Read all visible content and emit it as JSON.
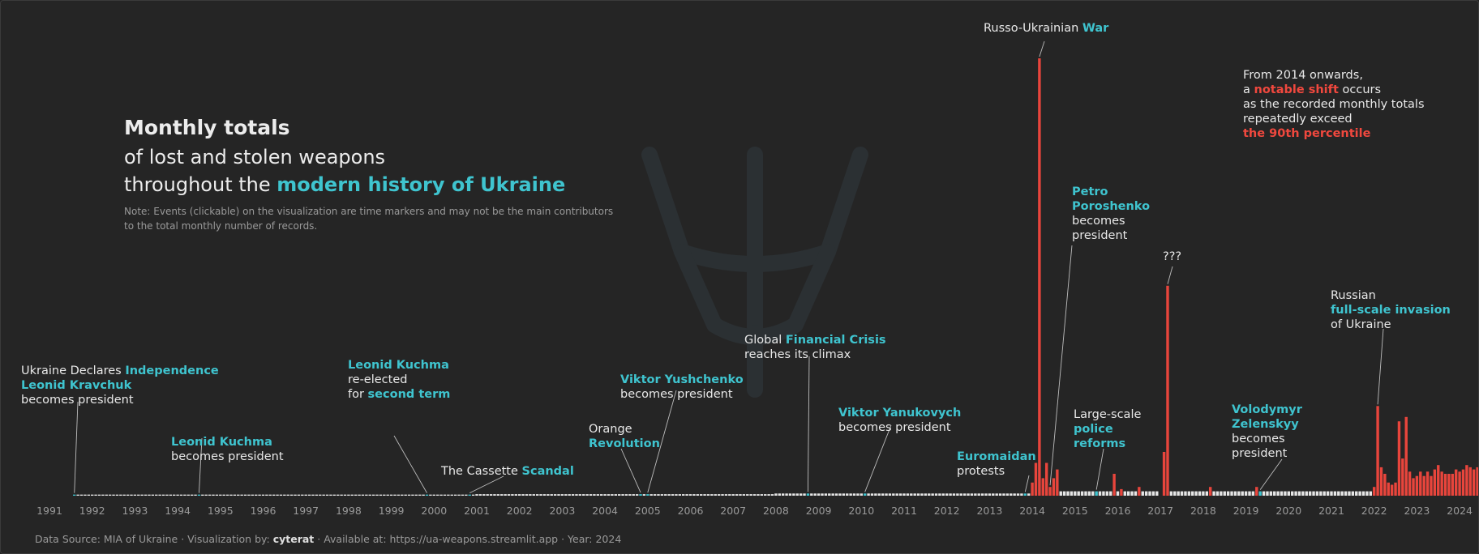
{
  "title": {
    "line1": "Monthly totals",
    "line2": "of lost and stolen weapons",
    "line3_prefix": "throughout the ",
    "line3_highlight": "modern history of Ukraine",
    "note": "Note: Events (clickable) on the visualization are time markers and may not be the main contributors to the total monthly number of records."
  },
  "footer": {
    "source": "Data Source: MIA of Ukraine · Visualization by: ",
    "author": "cyterat",
    "rest": " · Available at: https://ua-weapons.streamlit.app · Year: 2024"
  },
  "colors": {
    "background": "#252525",
    "normal_bar": "#e6e6e6",
    "high_bar": "#e8453c",
    "event_bar": "#3fc4cf",
    "accent": "#3fc4cf",
    "alert": "#f0483e"
  },
  "chart_data": {
    "type": "bar",
    "xlabel": "",
    "ylabel": "",
    "grid": false,
    "x_ticks": [
      "1991",
      "1992",
      "1993",
      "1994",
      "1995",
      "1996",
      "1997",
      "1998",
      "1999",
      "2000",
      "2001",
      "2002",
      "2003",
      "2004",
      "2005",
      "2006",
      "2007",
      "2008",
      "2009",
      "2010",
      "2011",
      "2012",
      "2013",
      "2014",
      "2015",
      "2016",
      "2017",
      "2018",
      "2019",
      "2020",
      "2021",
      "2022",
      "2023",
      "2024"
    ],
    "period": {
      "start": "1991-08",
      "end": "2024-06"
    },
    "threshold": "the 90th percentile",
    "highlighted_months": [
      {
        "month": "2014-01",
        "value": 6
      },
      {
        "month": "2014-02",
        "value": 15
      },
      {
        "month": "2014-03",
        "value": 200
      },
      {
        "month": "2014-04",
        "value": 8
      },
      {
        "month": "2014-05",
        "value": 15
      },
      {
        "month": "2014-06",
        "value": 4
      },
      {
        "month": "2014-07",
        "value": 8
      },
      {
        "month": "2014-08",
        "value": 12
      },
      {
        "month": "2015-12",
        "value": 10
      },
      {
        "month": "2016-02",
        "value": 3
      },
      {
        "month": "2016-07",
        "value": 4
      },
      {
        "month": "2017-02",
        "value": 20
      },
      {
        "month": "2017-03",
        "value": 96
      },
      {
        "month": "2018-03",
        "value": 4
      },
      {
        "month": "2019-04",
        "value": 4
      },
      {
        "month": "2022-01",
        "value": 4
      },
      {
        "month": "2022-02",
        "value": 41
      },
      {
        "month": "2022-03",
        "value": 13
      },
      {
        "month": "2022-04",
        "value": 10
      },
      {
        "month": "2022-05",
        "value": 6
      },
      {
        "month": "2022-06",
        "value": 5
      },
      {
        "month": "2022-07",
        "value": 6
      },
      {
        "month": "2022-08",
        "value": 34
      },
      {
        "month": "2022-09",
        "value": 17
      },
      {
        "month": "2022-10",
        "value": 36
      },
      {
        "month": "2022-11",
        "value": 11
      },
      {
        "month": "2022-12",
        "value": 8
      },
      {
        "month": "2023-01",
        "value": 9
      },
      {
        "month": "2023-02",
        "value": 11
      },
      {
        "month": "2023-03",
        "value": 9
      },
      {
        "month": "2023-04",
        "value": 11
      },
      {
        "month": "2023-05",
        "value": 9
      },
      {
        "month": "2023-06",
        "value": 12
      },
      {
        "month": "2023-07",
        "value": 14
      },
      {
        "month": "2023-08",
        "value": 11
      },
      {
        "month": "2023-09",
        "value": 10
      },
      {
        "month": "2023-10",
        "value": 10
      },
      {
        "month": "2023-11",
        "value": 10
      },
      {
        "month": "2023-12",
        "value": 12
      },
      {
        "month": "2024-01",
        "value": 11
      },
      {
        "month": "2024-02",
        "value": 12
      },
      {
        "month": "2024-03",
        "value": 14
      },
      {
        "month": "2024-04",
        "value": 13
      },
      {
        "month": "2024-05",
        "value": 12
      },
      {
        "month": "2024-06",
        "value": 13
      }
    ],
    "baseline": [
      {
        "from": "1991-08",
        "to": "2000-12",
        "value": 0.5
      },
      {
        "from": "2001-01",
        "to": "2007-12",
        "value": 0.7
      },
      {
        "from": "2008-01",
        "to": "2013-12",
        "value": 1.0
      },
      {
        "from": "2014-09",
        "to": "2016-12",
        "value": 2.0
      },
      {
        "from": "2017-04",
        "to": "2021-12",
        "value": 2.0
      },
      {
        "from": "2022-01",
        "to": "2024-06",
        "value": 3.0
      }
    ],
    "events": [
      {
        "month": "1991-08",
        "text": [
          [
            {
              "t": "Ukraine Declares "
            },
            {
              "t": "Independence",
              "h": 1
            }
          ],
          [
            {
              "t": "Leonid Kravchuk",
              "h": 1
            }
          ],
          [
            {
              "t": "becomes president"
            }
          ]
        ]
      },
      {
        "month": "1994-07",
        "text": [
          [
            {
              "t": "Leonid Kuchma",
              "h": 1
            }
          ],
          [
            {
              "t": "becomes president"
            }
          ]
        ]
      },
      {
        "month": "1999-11",
        "text": [
          [
            {
              "t": "Leonid Kuchma",
              "h": 1
            }
          ],
          [
            {
              "t": "re-elected"
            }
          ],
          [
            {
              "t": "for "
            },
            {
              "t": "second term",
              "h": 1
            }
          ]
        ]
      },
      {
        "month": "2000-11",
        "text": [
          [
            {
              "t": "The Cassette "
            },
            {
              "t": "Scandal",
              "h": 1
            }
          ]
        ]
      },
      {
        "month": "2004-11",
        "text": [
          [
            {
              "t": "Orange"
            }
          ],
          [
            {
              "t": "Revolution",
              "h": 1
            }
          ]
        ]
      },
      {
        "month": "2005-01",
        "text": [
          [
            {
              "t": "Viktor Yushchenko",
              "h": 1
            }
          ],
          [
            {
              "t": "becomes president"
            }
          ]
        ]
      },
      {
        "month": "2008-10",
        "text": [
          [
            {
              "t": "Global "
            },
            {
              "t": "Financial Crisis",
              "h": 1
            }
          ],
          [
            {
              "t": "reaches its climax"
            }
          ]
        ]
      },
      {
        "month": "2010-02",
        "text": [
          [
            {
              "t": "Viktor Yanukovych",
              "h": 1
            }
          ],
          [
            {
              "t": "becomes president"
            }
          ]
        ]
      },
      {
        "month": "2013-11",
        "text": [
          [
            {
              "t": "Euromaidan",
              "h": 1
            }
          ],
          [
            {
              "t": "protests"
            }
          ]
        ]
      },
      {
        "month": "2014-03",
        "text": [
          [
            {
              "t": "Russo-Ukrainian "
            },
            {
              "t": "War",
              "h": 1
            }
          ]
        ]
      },
      {
        "month": "2014-06",
        "text": [
          [
            {
              "t": "Petro",
              "h": 1
            }
          ],
          [
            {
              "t": "Poroshenko",
              "h": 1
            }
          ],
          [
            {
              "t": "becomes"
            }
          ],
          [
            {
              "t": "president"
            }
          ]
        ]
      },
      {
        "month": "2015-07",
        "text": [
          [
            {
              "t": "Large-scale"
            }
          ],
          [
            {
              "t": "police",
              "h": 1
            }
          ],
          [
            {
              "t": "reforms",
              "h": 1
            }
          ]
        ]
      },
      {
        "month": "2017-03",
        "text": [
          [
            {
              "t": "???"
            }
          ]
        ]
      },
      {
        "month": "2019-05",
        "text": [
          [
            {
              "t": "Volodymyr",
              "h": 1
            }
          ],
          [
            {
              "t": "Zelenskyy",
              "h": 1
            }
          ],
          [
            {
              "t": "becomes"
            }
          ],
          [
            {
              "t": "president"
            }
          ]
        ]
      },
      {
        "month": "2022-02",
        "text": [
          [
            {
              "t": "Russian"
            }
          ],
          [
            {
              "t": "full-scale invasion",
              "h": 1
            }
          ],
          [
            {
              "t": "of Ukraine"
            }
          ]
        ]
      }
    ],
    "side_note": [
      [
        {
          "t": "From 2014 onwards,"
        }
      ],
      [
        {
          "t": "a "
        },
        {
          "t": "notable shift",
          "r": 1
        },
        {
          "t": " occurs"
        }
      ],
      [
        {
          "t": "as the recorded monthly totals"
        }
      ],
      [
        {
          "t": "repeatedly exceed"
        }
      ],
      [
        {
          "t": "the 90th percentile",
          "r": 1
        }
      ]
    ]
  }
}
